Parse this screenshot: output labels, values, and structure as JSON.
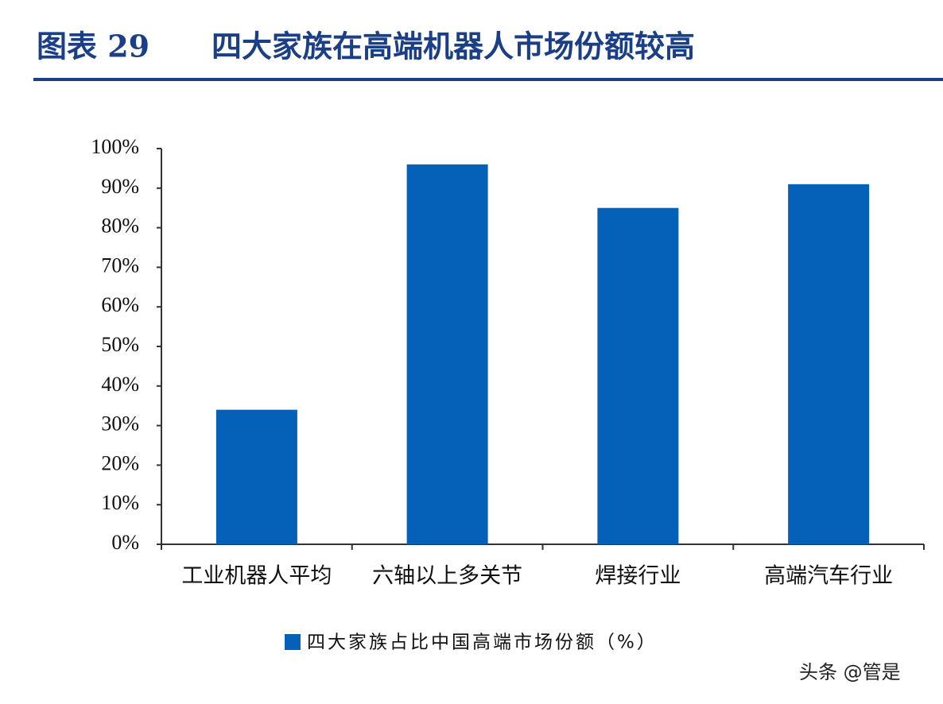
{
  "chart_data": {
    "type": "bar",
    "title_label": "图表 29",
    "title": "四大家族在高端机器人市场份额较高",
    "categories": [
      "工业机器人平均",
      "六轴以上多关节",
      "焊接行业",
      "高端汽车行业"
    ],
    "series": [
      {
        "name": "四大家族占比中国高端市场份额（%）",
        "color": "#0560b8",
        "values": [
          34,
          96,
          85,
          91
        ]
      }
    ],
    "ylim": [
      0,
      100
    ],
    "yticks": [
      {
        "value": 0,
        "label": "0%"
      },
      {
        "value": 10,
        "label": "10%"
      },
      {
        "value": 20,
        "label": "20%"
      },
      {
        "value": 30,
        "label": "30%"
      },
      {
        "value": 40,
        "label": "40%"
      },
      {
        "value": 50,
        "label": "50%"
      },
      {
        "value": 60,
        "label": "60%"
      },
      {
        "value": 70,
        "label": "70%"
      },
      {
        "value": 80,
        "label": "80%"
      },
      {
        "value": 90,
        "label": "90%"
      },
      {
        "value": 100,
        "label": "100%"
      }
    ],
    "grid": false,
    "legend": "bottom",
    "watermark": "头条 @管是"
  }
}
